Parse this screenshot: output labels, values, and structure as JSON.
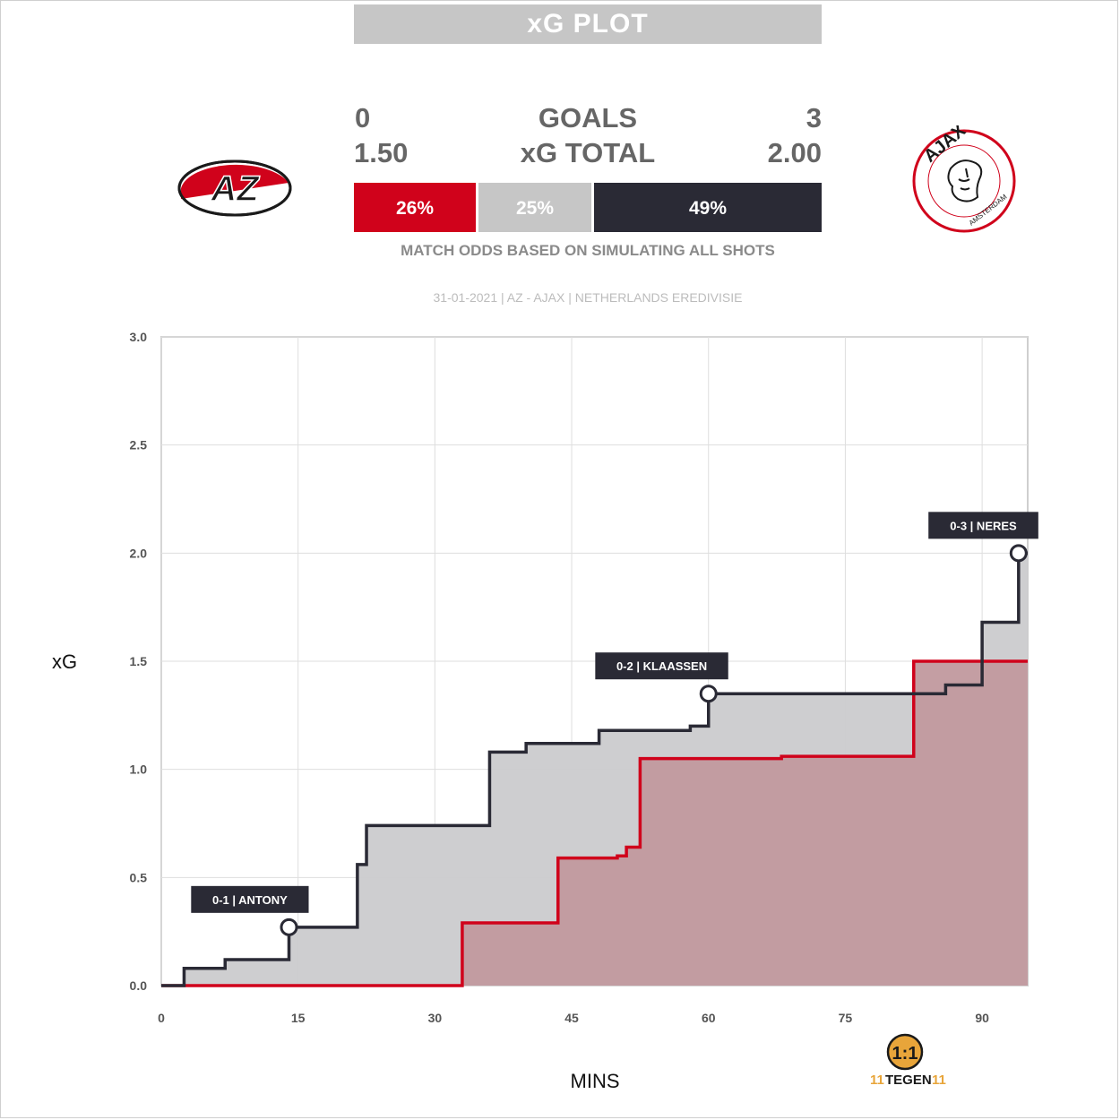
{
  "header": {
    "title": "xG PLOT"
  },
  "teams": {
    "home": {
      "name": "AZ",
      "logo_text": "AZ",
      "goals": "0",
      "xg": "1.50",
      "color": "#d0021b"
    },
    "away": {
      "name": "AJAX",
      "logo_text": "AJAX",
      "logo_subtext": "AMSTERDAM",
      "goals": "3",
      "xg": "2.00",
      "color": "#2a2a35"
    }
  },
  "labels": {
    "goals": "GOALS",
    "xg_total": "xG TOTAL"
  },
  "odds": {
    "home": {
      "label": "26%",
      "value": 26,
      "color": "#d0021b"
    },
    "draw": {
      "label": "25%",
      "value": 25,
      "color": "#c6c6c6"
    },
    "away": {
      "label": "49%",
      "value": 49,
      "color": "#2a2a35"
    },
    "note": "MATCH ODDS BASED ON SIMULATING ALL SHOTS"
  },
  "match_info": "31-01-2021 | AZ - AJAX | NETHERLANDS EREDIVISIE",
  "brand": {
    "name": "TEGEN",
    "prefix": "11",
    "suffix": "11"
  },
  "chart_data": {
    "type": "line",
    "step": true,
    "xlabel": "MINS",
    "ylabel": "xG",
    "xlim": [
      0,
      95
    ],
    "ylim": [
      0,
      3
    ],
    "xticks": [
      0,
      15,
      30,
      45,
      60,
      75,
      90
    ],
    "yticks": [
      "0.0",
      "0.5",
      "1.0",
      "1.5",
      "2.0",
      "2.5",
      "3.0"
    ],
    "series": [
      {
        "name": "AZ",
        "color": "#d0021b",
        "fill": "#c1999e",
        "points": [
          [
            0,
            0
          ],
          [
            33,
            0
          ],
          [
            33,
            0.29
          ],
          [
            43.5,
            0.29
          ],
          [
            43.5,
            0.59
          ],
          [
            50,
            0.59
          ],
          [
            50,
            0.6
          ],
          [
            51,
            0.6
          ],
          [
            51,
            0.64
          ],
          [
            52.5,
            0.64
          ],
          [
            52.5,
            1.05
          ],
          [
            68,
            1.05
          ],
          [
            68,
            1.06
          ],
          [
            82.5,
            1.06
          ],
          [
            82.5,
            1.5
          ],
          [
            95,
            1.5
          ]
        ]
      },
      {
        "name": "AJAX",
        "color": "#2a2a35",
        "fill": "#cbcbcd",
        "points": [
          [
            0,
            0
          ],
          [
            2.5,
            0
          ],
          [
            2.5,
            0.08
          ],
          [
            7,
            0.08
          ],
          [
            7,
            0.12
          ],
          [
            14,
            0.12
          ],
          [
            14,
            0.27
          ],
          [
            21.5,
            0.27
          ],
          [
            21.5,
            0.56
          ],
          [
            22.5,
            0.56
          ],
          [
            22.5,
            0.74
          ],
          [
            36,
            0.74
          ],
          [
            36,
            1.08
          ],
          [
            40,
            1.08
          ],
          [
            40,
            1.12
          ],
          [
            48,
            1.12
          ],
          [
            48,
            1.18
          ],
          [
            58,
            1.18
          ],
          [
            58,
            1.2
          ],
          [
            60,
            1.2
          ],
          [
            60,
            1.35
          ],
          [
            86,
            1.35
          ],
          [
            86,
            1.39
          ],
          [
            90,
            1.39
          ],
          [
            90,
            1.68
          ],
          [
            94,
            1.68
          ],
          [
            94,
            2.0
          ],
          [
            95,
            2.0
          ]
        ]
      }
    ],
    "annotations": [
      {
        "label": "0-1 | ANTONY",
        "x": 14,
        "y": 0.27
      },
      {
        "label": "0-2 | KLAASSEN",
        "x": 60,
        "y": 1.35
      },
      {
        "label": "0-3 | NERES",
        "x": 94,
        "y": 2.0
      }
    ]
  }
}
